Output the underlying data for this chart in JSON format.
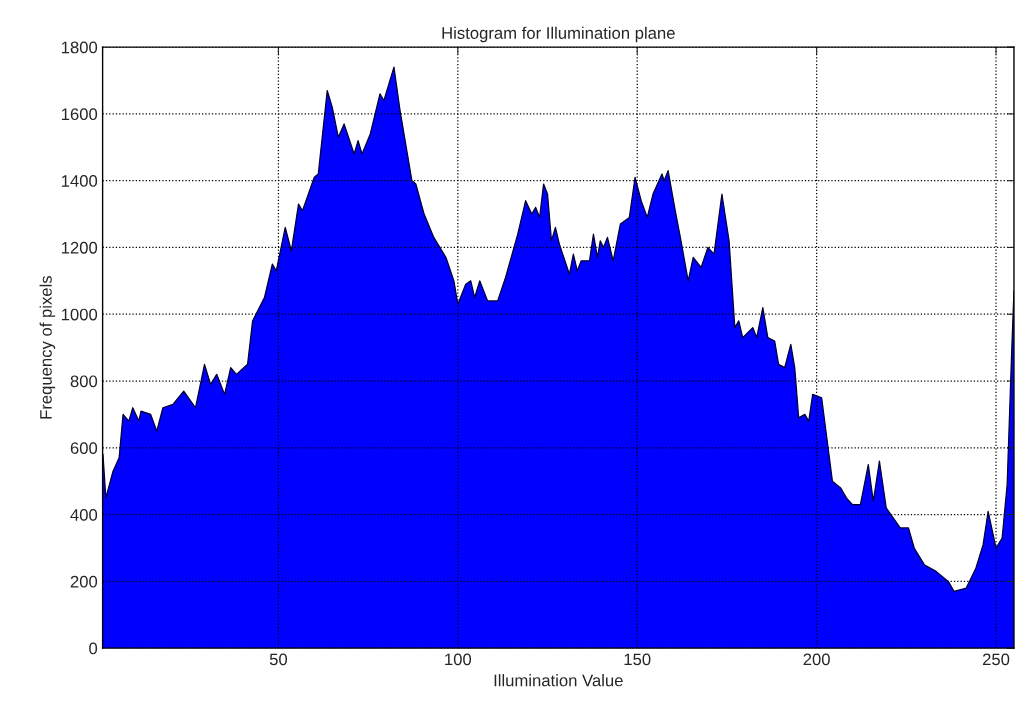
{
  "chart_data": {
    "type": "area",
    "title": "Histogram for Illumination plane",
    "xlabel": "Illumination Value",
    "ylabel": "Frequency of pixels",
    "x": [
      1.1,
      1.9,
      3.9,
      5.6,
      6.7,
      8.3,
      9.4,
      11.1,
      11.7,
      14.4,
      16.1,
      17.8,
      20.6,
      23.6,
      26.9,
      29.4,
      31.1,
      32.8,
      35,
      36.7,
      38.3,
      41.4,
      42.8,
      46.1,
      48.3,
      49.4,
      51.9,
      53.6,
      55.6,
      56.7,
      60,
      61.1,
      63.6,
      65,
      66.7,
      68.3,
      71.1,
      72.2,
      73.3,
      75.6,
      78.3,
      79.4,
      82.2,
      83.9,
      87.2,
      88.3,
      90.6,
      93.3,
      96.7,
      98.9,
      100,
      102.2,
      103.6,
      104.7,
      106.1,
      108.3,
      111.1,
      113.3,
      116.7,
      118.9,
      120.6,
      121.7,
      122.8,
      123.9,
      125,
      126.1,
      127.2,
      128.3,
      131.1,
      132.2,
      133.3,
      134.4,
      136.7,
      137.8,
      138.9,
      139.7,
      140.6,
      141.7,
      143.3,
      145.3,
      147.8,
      149.4,
      151.1,
      152.8,
      154.4,
      156.9,
      157.5,
      158.6,
      160.6,
      162.2,
      164.2,
      165.6,
      167.8,
      169.7,
      171.4,
      173.6,
      175.6,
      177.2,
      178.3,
      179.4,
      182.2,
      183.3,
      185,
      186.4,
      188.3,
      189.4,
      191.1,
      192.8,
      193.9,
      195,
      196.7,
      197.8,
      198.9,
      201.4,
      204.4,
      206.7,
      208.3,
      210,
      212.2,
      214.4,
      215.8,
      217.5,
      219.4,
      223.3,
      225.6,
      227.2,
      230,
      233.3,
      236.7,
      238.3,
      241.7,
      244.4,
      246.4,
      247.8,
      250,
      251.7,
      253.1,
      254.4,
      255
    ],
    "series": [
      {
        "color": "#0000ff",
        "values": [
          580,
          450,
          530,
          570,
          700,
          680,
          720,
          680,
          710,
          700,
          650,
          720,
          730,
          770,
          720,
          850,
          790,
          820,
          760,
          840,
          820,
          850,
          980,
          1050,
          1150,
          1130,
          1260,
          1190,
          1330,
          1310,
          1410,
          1420,
          1670,
          1620,
          1530,
          1570,
          1480,
          1520,
          1480,
          1540,
          1660,
          1640,
          1740,
          1610,
          1400,
          1390,
          1300,
          1230,
          1170,
          1100,
          1030,
          1090,
          1100,
          1050,
          1100,
          1040,
          1040,
          1110,
          1240,
          1340,
          1300,
          1320,
          1290,
          1390,
          1360,
          1220,
          1260,
          1210,
          1120,
          1180,
          1130,
          1160,
          1160,
          1240,
          1170,
          1220,
          1200,
          1230,
          1160,
          1270,
          1290,
          1410,
          1340,
          1290,
          1360,
          1420,
          1400,
          1430,
          1310,
          1220,
          1100,
          1170,
          1140,
          1200,
          1180,
          1360,
          1220,
          960,
          980,
          930,
          960,
          930,
          1020,
          930,
          920,
          850,
          840,
          910,
          840,
          690,
          700,
          680,
          760,
          750,
          500,
          480,
          450,
          430,
          430,
          550,
          440,
          560,
          420,
          360,
          360,
          300,
          250,
          230,
          200,
          170,
          180,
          240,
          310,
          410,
          300,
          330,
          490,
          900,
          1070
        ]
      }
    ],
    "xlim": [
      1,
      255
    ],
    "ylim": [
      0,
      1800
    ],
    "xticks": [
      50,
      100,
      150,
      200,
      250
    ],
    "yticks": [
      0,
      200,
      400,
      600,
      800,
      1000,
      1200,
      1400,
      1600,
      1800
    ],
    "grid": true
  }
}
